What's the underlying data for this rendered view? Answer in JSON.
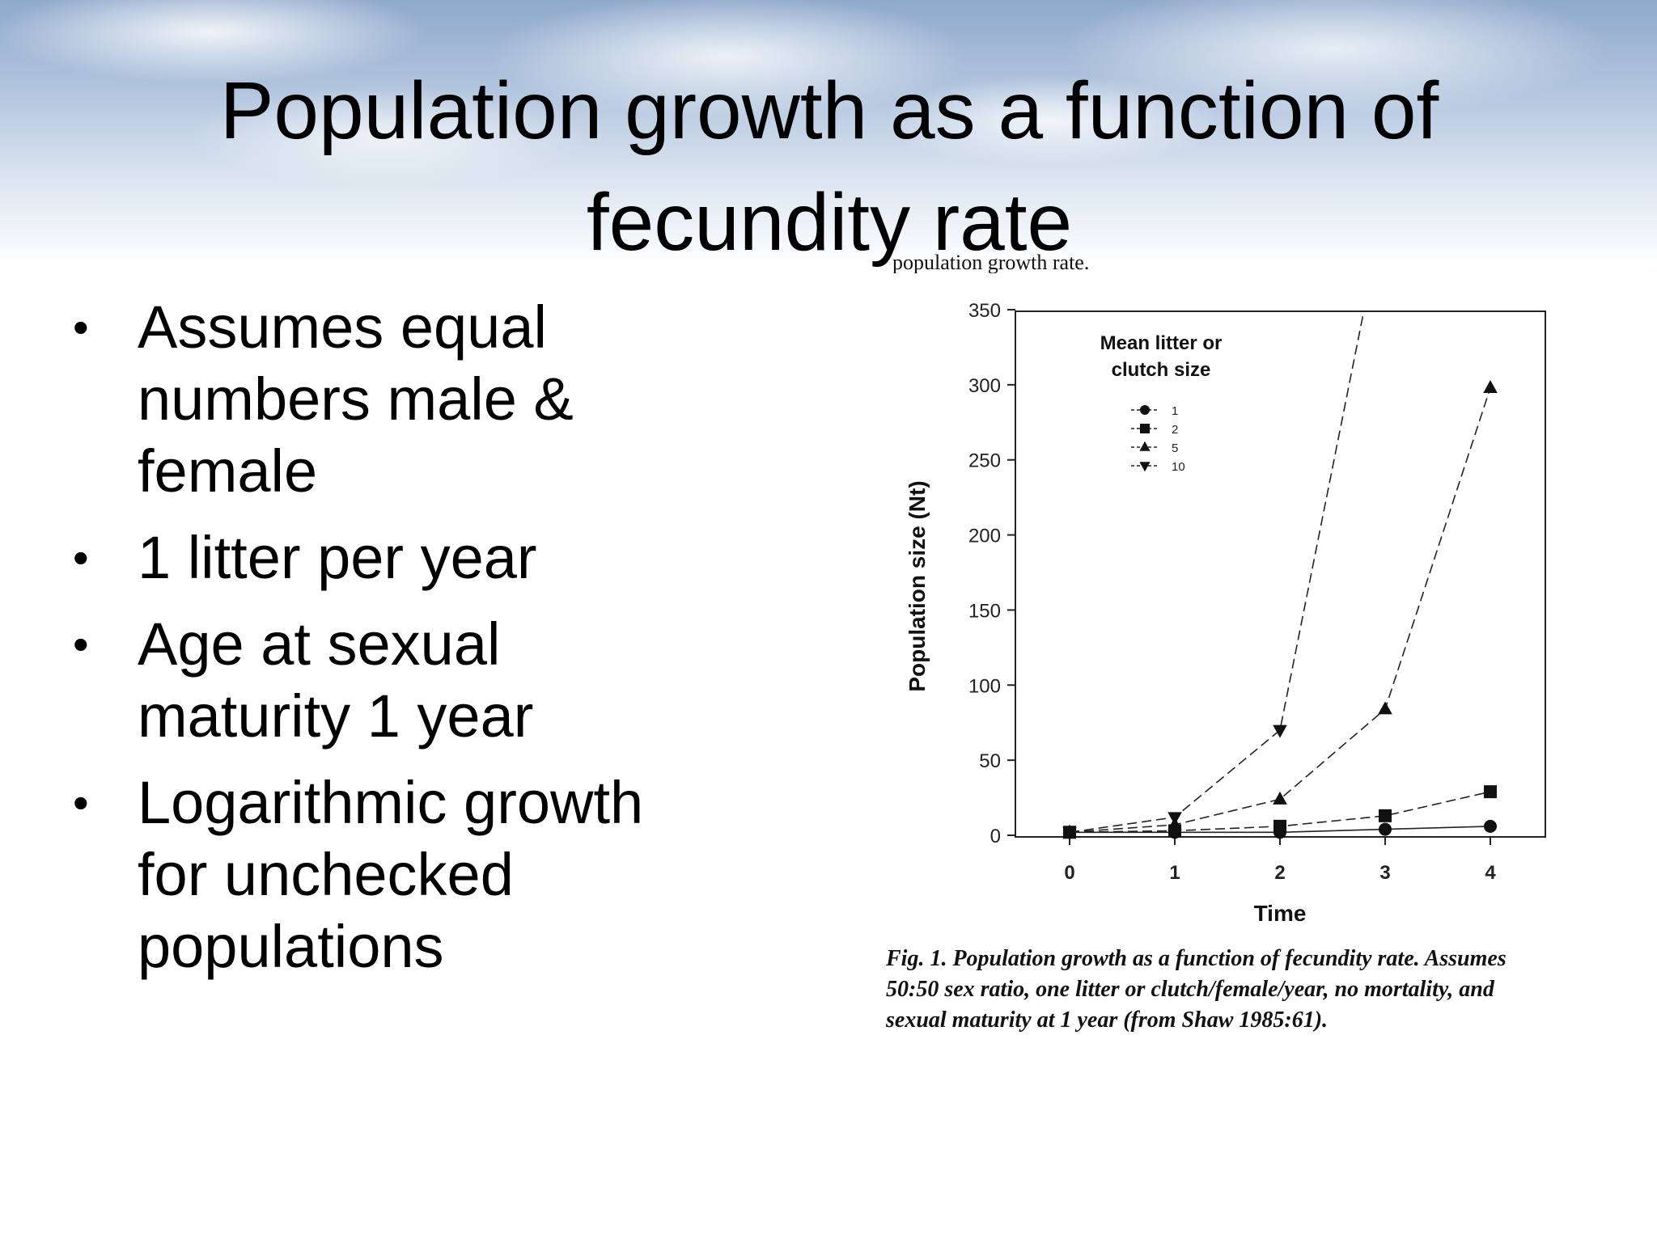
{
  "slide": {
    "title": "Population growth as a function of fecundity rate",
    "bullets": [
      "Assumes equal numbers male & female",
      "1 litter per year",
      "Age at sexual maturity 1 year",
      "Logarithmic growth for unchecked populations"
    ],
    "figure_header_fragment": "population growth rate.",
    "caption": "Fig. 1.  Population growth as a function of fecundity rate. Assumes 50:50 sex ratio, one litter or clutch/female/year, no mortality, and sexual maturity at 1 year (from Shaw 1985:61)."
  },
  "chart_data": {
    "type": "line",
    "title": "",
    "xlabel": "Time",
    "ylabel": "Population size (Nt)",
    "xlim": [
      0,
      4
    ],
    "ylim": [
      0,
      350
    ],
    "x": [
      0,
      1,
      2,
      3,
      4
    ],
    "yticks": [
      0,
      50,
      100,
      150,
      200,
      250,
      300,
      350
    ],
    "legend_title": "Mean litter or clutch size",
    "legend_position": "top-left",
    "grid": false,
    "series": [
      {
        "name": "1",
        "marker": "circle",
        "values": [
          2,
          2,
          2,
          4,
          6
        ]
      },
      {
        "name": "2",
        "marker": "square",
        "values": [
          2,
          3,
          6,
          13,
          29
        ]
      },
      {
        "name": "5",
        "marker": "triangle-up",
        "values": [
          2,
          7,
          24,
          84,
          298
        ]
      },
      {
        "name": "10",
        "marker": "triangle-down",
        "values": [
          2,
          12,
          70,
          420,
          null
        ]
      }
    ]
  }
}
